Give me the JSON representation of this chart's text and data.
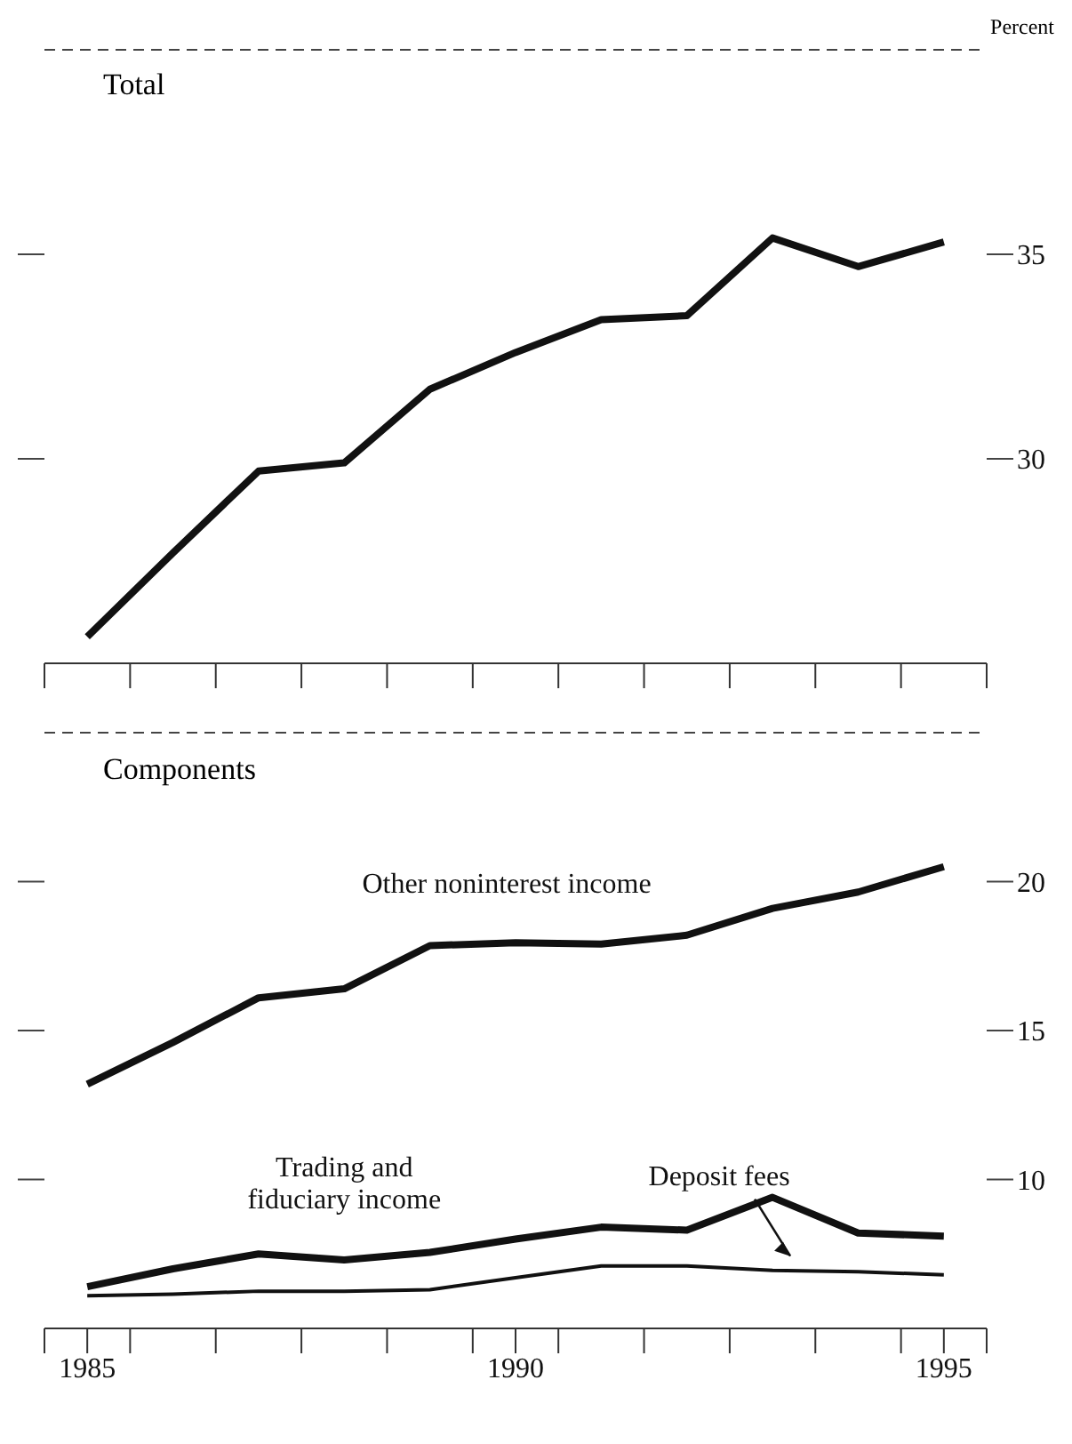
{
  "chart_data": [
    {
      "type": "line",
      "title": "Total",
      "ylabel": "Percent",
      "x": [
        1985,
        1986,
        1987,
        1988,
        1989,
        1990,
        1991,
        1992,
        1993,
        1994,
        1995
      ],
      "xlim": [
        1984.5,
        1995.5
      ],
      "xticks": [
        {
          "value": 1984.5,
          "label": null
        },
        {
          "value": 1985.5,
          "label": null
        },
        {
          "value": 1986.5,
          "label": null
        },
        {
          "value": 1987.5,
          "label": null
        },
        {
          "value": 1988.5,
          "label": null
        },
        {
          "value": 1989.5,
          "label": null
        },
        {
          "value": 1990.5,
          "label": null
        },
        {
          "value": 1991.5,
          "label": null
        },
        {
          "value": 1992.5,
          "label": null
        },
        {
          "value": 1993.5,
          "label": null
        },
        {
          "value": 1994.5,
          "label": null
        },
        {
          "value": 1995.5,
          "label": null
        }
      ],
      "ylim": [
        25,
        40
      ],
      "yticks": [
        30,
        35
      ],
      "tick_labels": "y",
      "marker": "none",
      "line_style": "solid",
      "series": [
        {
          "color": "#111111",
          "values": [
            25.65,
            27.7,
            29.7,
            29.9,
            31.7,
            32.6,
            33.4,
            33.5,
            35.4,
            34.7,
            35.3
          ]
        }
      ]
    },
    {
      "type": "line",
      "title": "Components",
      "x": [
        1985,
        1986,
        1987,
        1988,
        1989,
        1990,
        1991,
        1992,
        1993,
        1994,
        1995
      ],
      "xlim": [
        1984.5,
        1995.5
      ],
      "xticks": [
        {
          "value": 1984.5,
          "label": null
        },
        1985,
        {
          "value": 1985.5,
          "label": null
        },
        {
          "value": 1986.5,
          "label": null
        },
        {
          "value": 1987.5,
          "label": null
        },
        {
          "value": 1988.5,
          "label": null
        },
        {
          "value": 1989.5,
          "label": null
        },
        1990,
        {
          "value": 1990.5,
          "label": null
        },
        {
          "value": 1991.5,
          "label": null
        },
        {
          "value": 1992.5,
          "label": null
        },
        {
          "value": 1993.5,
          "label": null
        },
        {
          "value": 1994.5,
          "label": null
        },
        1995,
        {
          "value": 1995.5,
          "label": null
        }
      ],
      "ylim": [
        5,
        25
      ],
      "yticks": [
        10,
        15,
        20
      ],
      "marker": "none",
      "line_style": "solid",
      "series": [
        {
          "name": "Other noninterest income",
          "color": "#111111",
          "values": [
            13.2,
            14.6,
            16.1,
            16.4,
            17.85,
            17.95,
            17.9,
            18.2,
            19.1,
            19.65,
            20.5
          ]
        },
        {
          "name": "Trading and fiduciary income",
          "color": "#111111",
          "values": [
            6.4,
            7.0,
            7.5,
            7.3,
            7.55,
            8.0,
            8.4,
            8.3,
            9.4,
            8.2,
            8.1
          ]
        },
        {
          "name": "Deposit fees",
          "color": "#111111",
          "values": [
            6.1,
            6.15,
            6.25,
            6.25,
            6.3,
            6.7,
            7.1,
            7.1,
            6.95,
            6.9,
            6.8
          ]
        }
      ]
    }
  ]
}
